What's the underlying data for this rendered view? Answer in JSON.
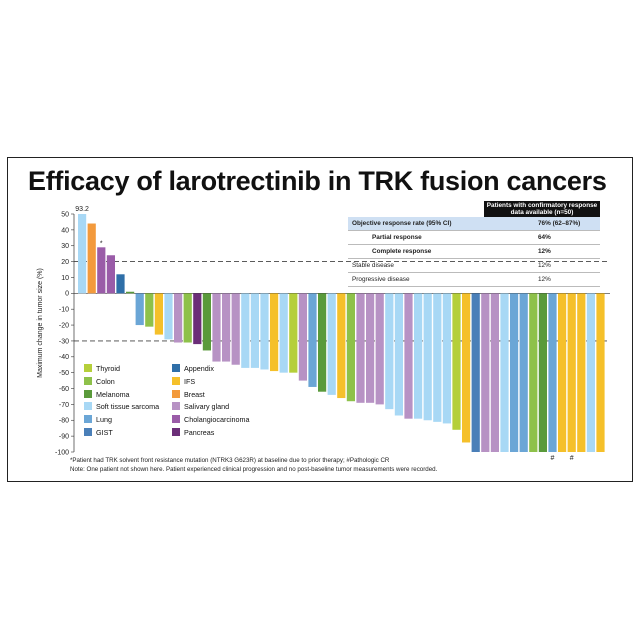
{
  "title": "Efficacy of larotrectinib in TRK fusion cancers",
  "chart_data": {
    "type": "bar",
    "subtype": "waterfall",
    "ylabel": "Maximum change in tumor size (%)",
    "ylim": [
      -100,
      50
    ],
    "yticks": [
      50,
      40,
      30,
      20,
      10,
      0,
      -10,
      -20,
      -30,
      -40,
      -50,
      -60,
      -70,
      -80,
      -90,
      -100
    ],
    "reference_lines": [
      20,
      -30
    ],
    "top_bar_label": "93.2",
    "asterisk_label": "*",
    "hash_labels": [
      "#",
      "#"
    ],
    "colors": {
      "Thyroid": "#b5cf3a",
      "Colon": "#8ec14a",
      "Melanoma": "#5a9a3b",
      "Soft tissue sarcoma": "#a8d8f5",
      "Lung": "#6ba6d6",
      "GIST": "#4a7fb8",
      "Appendix": "#2f6fa8",
      "IFS": "#f5c02a",
      "Breast": "#f39a3c",
      "Salivary gland": "#b792c4",
      "Cholangiocarcinoma": "#9a5ca8",
      "Pancreas": "#6b2e78"
    },
    "values": [
      {
        "value": 50,
        "category": "Soft tissue sarcoma"
      },
      {
        "value": 44,
        "category": "Breast"
      },
      {
        "value": 29,
        "category": "Cholangiocarcinoma"
      },
      {
        "value": 24,
        "category": "Cholangiocarcinoma"
      },
      {
        "value": 12,
        "category": "Appendix"
      },
      {
        "value": 1,
        "category": "Melanoma"
      },
      {
        "value": -20,
        "category": "Lung"
      },
      {
        "value": -21,
        "category": "Colon"
      },
      {
        "value": -26,
        "category": "IFS"
      },
      {
        "value": -29,
        "category": "Soft tissue sarcoma"
      },
      {
        "value": -31,
        "category": "Salivary gland"
      },
      {
        "value": -31,
        "category": "Colon"
      },
      {
        "value": -32,
        "category": "Pancreas"
      },
      {
        "value": -36,
        "category": "Melanoma"
      },
      {
        "value": -43,
        "category": "Salivary gland"
      },
      {
        "value": -43,
        "category": "Salivary gland"
      },
      {
        "value": -45,
        "category": "Salivary gland"
      },
      {
        "value": -47,
        "category": "Soft tissue sarcoma"
      },
      {
        "value": -47,
        "category": "Soft tissue sarcoma"
      },
      {
        "value": -48,
        "category": "Soft tissue sarcoma"
      },
      {
        "value": -49,
        "category": "IFS"
      },
      {
        "value": -50,
        "category": "Soft tissue sarcoma"
      },
      {
        "value": -50,
        "category": "Thyroid"
      },
      {
        "value": -55,
        "category": "Salivary gland"
      },
      {
        "value": -59,
        "category": "Lung"
      },
      {
        "value": -62,
        "category": "Melanoma"
      },
      {
        "value": -64,
        "category": "Soft tissue sarcoma"
      },
      {
        "value": -66,
        "category": "IFS"
      },
      {
        "value": -68,
        "category": "Colon"
      },
      {
        "value": -69,
        "category": "Salivary gland"
      },
      {
        "value": -69,
        "category": "Salivary gland"
      },
      {
        "value": -70,
        "category": "Salivary gland"
      },
      {
        "value": -73,
        "category": "Soft tissue sarcoma"
      },
      {
        "value": -77,
        "category": "Soft tissue sarcoma"
      },
      {
        "value": -79,
        "category": "Salivary gland"
      },
      {
        "value": -79,
        "category": "Soft tissue sarcoma"
      },
      {
        "value": -80,
        "category": "Soft tissue sarcoma"
      },
      {
        "value": -81,
        "category": "Soft tissue sarcoma"
      },
      {
        "value": -82,
        "category": "Soft tissue sarcoma"
      },
      {
        "value": -86,
        "category": "Thyroid"
      },
      {
        "value": -94,
        "category": "IFS"
      },
      {
        "value": -100,
        "category": "GIST"
      },
      {
        "value": -100,
        "category": "Salivary gland"
      },
      {
        "value": -100,
        "category": "Salivary gland"
      },
      {
        "value": -100,
        "category": "Soft tissue sarcoma"
      },
      {
        "value": -100,
        "category": "Lung"
      },
      {
        "value": -100,
        "category": "Lung"
      },
      {
        "value": -100,
        "category": "Colon"
      },
      {
        "value": -100,
        "category": "Melanoma"
      },
      {
        "value": -100,
        "category": "Lung"
      },
      {
        "value": -100,
        "category": "IFS"
      },
      {
        "value": -100,
        "category": "IFS"
      },
      {
        "value": -100,
        "category": "IFS"
      },
      {
        "value": -100,
        "category": "Soft tissue sarcoma"
      },
      {
        "value": -100,
        "category": "IFS"
      }
    ]
  },
  "legend": {
    "col1": [
      "Thyroid",
      "Colon",
      "Melanoma",
      "Soft tissue  sarcoma",
      "Lung",
      "GIST"
    ],
    "col1_keys": [
      "Thyroid",
      "Colon",
      "Melanoma",
      "Soft tissue sarcoma",
      "Lung",
      "GIST"
    ],
    "col2": [
      "Appendix",
      "IFS",
      "Breast",
      "Salivary gland",
      "Cholangiocarcinoma",
      "Pancreas"
    ],
    "col2_keys": [
      "Appendix",
      "IFS",
      "Breast",
      "Salivary gland",
      "Cholangiocarcinoma",
      "Pancreas"
    ]
  },
  "response_table": {
    "header": "Patients with confirmatory response data available (n=50)",
    "rows": [
      {
        "label": "Objective response rate (95% CI)",
        "value": "76% (62–87%)"
      },
      {
        "label": "Partial response",
        "value": "64%"
      },
      {
        "label": "Complete response",
        "value": "12%"
      },
      {
        "label": "Stable disease",
        "value": "12%"
      },
      {
        "label": "Progressive disease",
        "value": "12%"
      }
    ]
  },
  "footnotes": {
    "line1": "*Patient had TRK solvent front  resistance  mutation  (NTRK3 G623R)  at baseline  due to prior therapy;  #Pathologic  CR",
    "line2": "Note: One patient  not shown here.  Patient  experienced clinical progression  and no post-baseline  tumor measurements  were recorded."
  }
}
